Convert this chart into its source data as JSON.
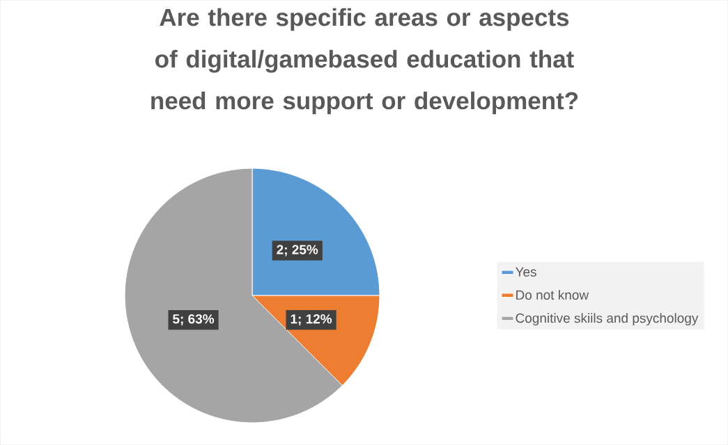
{
  "chart_data": {
    "type": "pie",
    "title": "Are there specific areas or aspects of digital/gamebased education that need more support or development?",
    "categories": [
      "Yes",
      "Do not know",
      "Cognitive skiils and psychology"
    ],
    "values": [
      2,
      1,
      5
    ],
    "value_labels": [
      "2; 25%",
      "1; 12%",
      "5; 63%"
    ],
    "colors": [
      "#5b9bd5",
      "#ed7d31",
      "#a5a5a5"
    ],
    "legend": "right"
  }
}
